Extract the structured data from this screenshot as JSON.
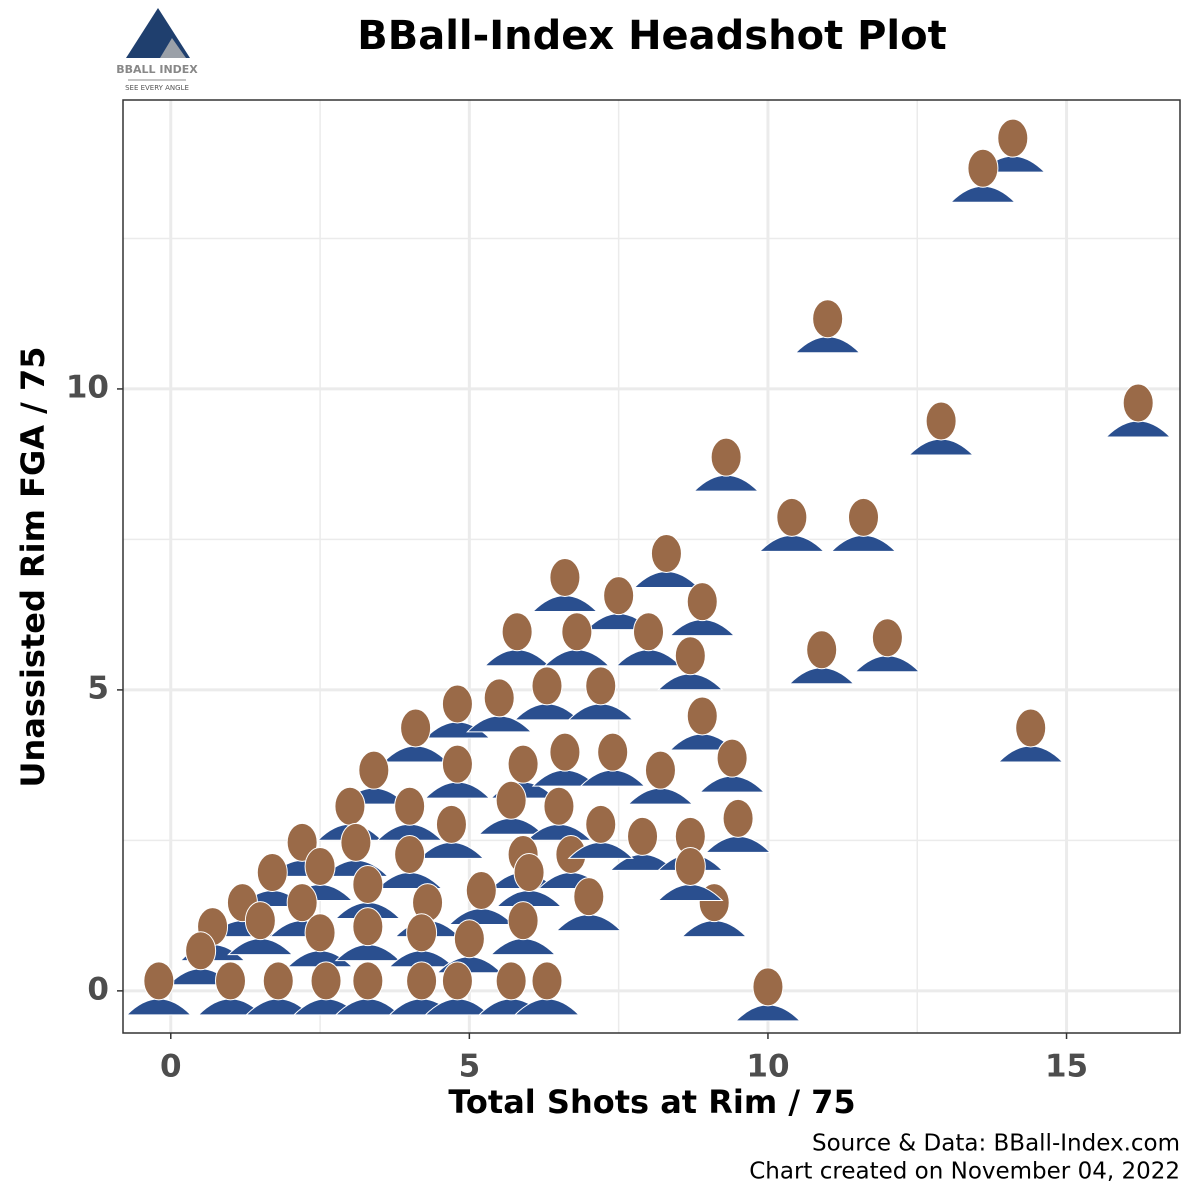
{
  "logo": {
    "name": "BBALL INDEX",
    "tagline": "SEE EVERY ANGLE"
  },
  "chart_data": {
    "type": "scatter",
    "title": "BBall-Index Headshot Plot",
    "x_label": "Total Shots at Rim / 75",
    "y_label": "Unassisted Rim FGA / 75",
    "source": "Source & Data: BBall-Index.com",
    "created": "Chart created on November 04, 2022",
    "x": [
      14.1,
      13.6,
      11.0,
      16.2,
      12.9,
      9.3,
      10.4,
      11.6,
      10.9,
      12.0,
      14.4,
      9.1,
      10.0,
      6.6,
      8.3,
      7.5,
      8.9,
      5.8,
      6.8,
      8.0,
      8.7,
      6.3,
      7.2,
      4.8,
      5.5,
      8.9,
      4.1,
      4.8,
      5.9,
      6.6,
      7.4,
      8.2,
      9.4,
      3.4,
      3.0,
      4.0,
      4.7,
      5.7,
      6.5,
      7.9,
      8.7,
      9.5,
      2.2,
      3.1,
      4.0,
      5.9,
      6.7,
      7.2,
      8.7,
      1.7,
      2.5,
      3.3,
      5.2,
      6.0,
      7.0,
      1.2,
      2.2,
      4.3,
      0.7,
      1.5,
      2.5,
      3.3,
      4.2,
      5.0,
      5.9,
      0.5,
      -0.2,
      1.0,
      1.8,
      2.6,
      3.3,
      4.2,
      4.8,
      5.7,
      6.3
    ],
    "values": [
      14.1,
      13.6,
      11.1,
      9.7,
      9.4,
      8.8,
      7.8,
      7.8,
      5.6,
      5.8,
      4.3,
      1.4,
      0.0,
      6.8,
      7.2,
      6.5,
      6.4,
      5.9,
      5.9,
      5.9,
      5.5,
      5.0,
      5.0,
      4.7,
      4.8,
      4.5,
      4.3,
      3.7,
      3.7,
      3.9,
      3.9,
      3.6,
      3.8,
      3.6,
      3.0,
      3.0,
      2.7,
      3.1,
      3.0,
      2.5,
      2.5,
      2.8,
      2.4,
      2.4,
      2.2,
      2.2,
      2.2,
      2.7,
      2.0,
      1.9,
      2.0,
      1.7,
      1.6,
      1.9,
      1.5,
      1.4,
      1.4,
      1.4,
      1.0,
      1.1,
      0.9,
      1.0,
      0.9,
      0.8,
      1.1,
      0.6,
      0.1,
      0.1,
      0.1,
      0.1,
      0.1,
      0.1,
      0.1,
      0.1,
      0.1
    ],
    "color": "#2a4f8f",
    "face_color": "#9a6a48",
    "xlim": [
      -0.8,
      16.9
    ],
    "xticks": [
      0,
      5,
      10,
      15
    ],
    "x_minor_ticks": [
      2.5,
      7.5,
      12.5
    ],
    "ylim": [
      -0.7,
      14.8
    ],
    "yticks": [
      0,
      5,
      10
    ],
    "y_minor_ticks": [
      2.5,
      7.5,
      12.5
    ],
    "grid": true
  }
}
